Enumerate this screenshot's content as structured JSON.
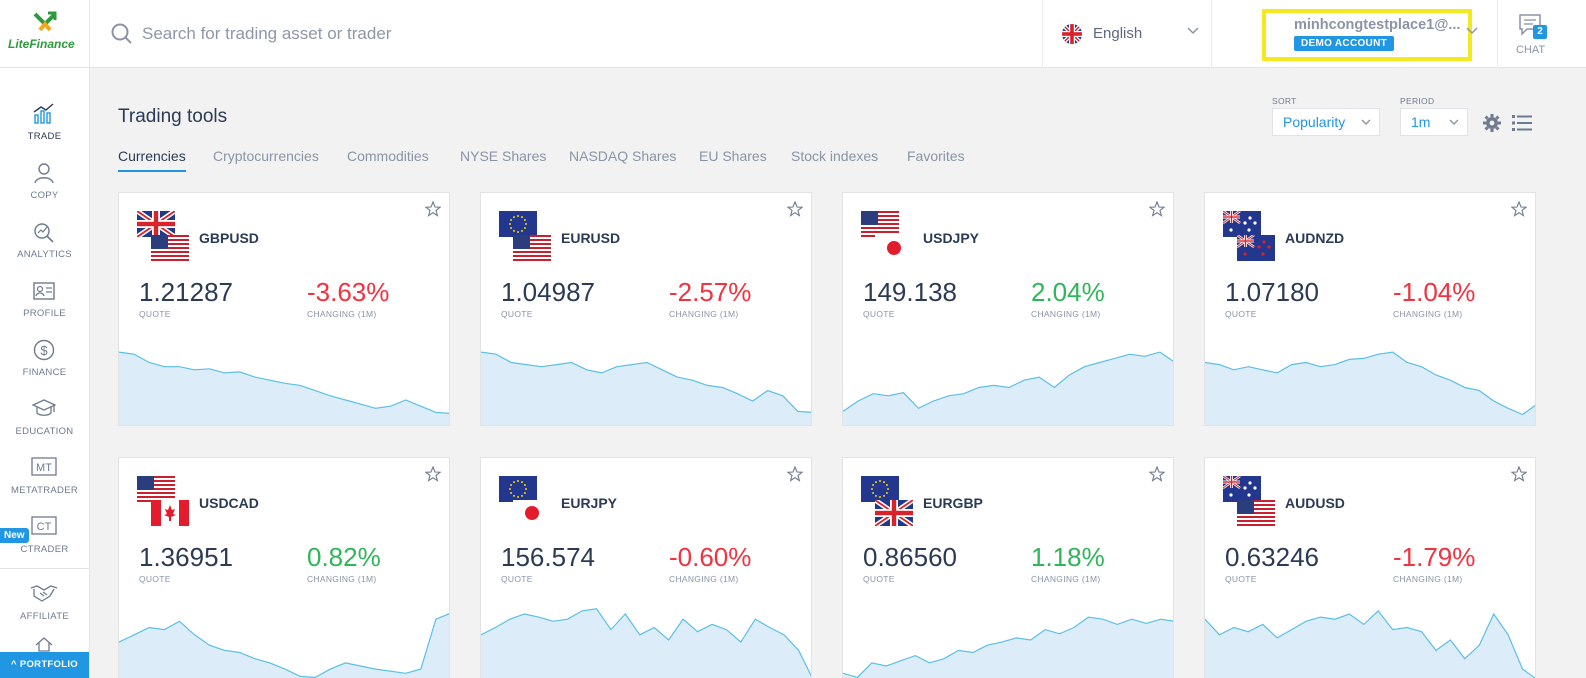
{
  "brand": {
    "logo_text": "LiteFinance",
    "accent": "#2196e3",
    "negative_color": "#f2323f",
    "positive_color": "#2fb65a"
  },
  "search": {
    "placeholder": "Search for trading asset or trader",
    "icon": "search-icon"
  },
  "language": {
    "label": "English",
    "icon": "uk-flag-icon"
  },
  "account": {
    "email": "minhcongtestplace1@...",
    "badge": "DEMO ACCOUNT"
  },
  "chat": {
    "label": "CHAT",
    "count": "2"
  },
  "sidebar": {
    "items": [
      {
        "label": "TRADE",
        "icon": "chart-icon"
      },
      {
        "label": "COPY",
        "icon": "user-icon"
      },
      {
        "label": "ANALYTICS",
        "icon": "analytics-icon"
      },
      {
        "label": "PROFILE",
        "icon": "id-card-icon"
      },
      {
        "label": "FINANCE",
        "icon": "dollar-icon"
      },
      {
        "label": "EDUCATION",
        "icon": "graduation-cap-icon"
      },
      {
        "label": "METATRADER",
        "icon": "mt-icon"
      },
      {
        "label": "CTRADER",
        "icon": "ct-icon"
      },
      {
        "label": "AFFILIATE",
        "icon": "handshake-icon"
      }
    ],
    "new_badge": "New",
    "portfolio_label": "PORTFOLIO"
  },
  "main": {
    "title": "Trading tools",
    "tabs": [
      "Currencies",
      "Cryptocurrencies",
      "Commodities",
      "NYSE Shares",
      "NASDAQ Shares",
      "EU Shares",
      "Stock indexes",
      "Favorites"
    ],
    "active_tab": 0,
    "sort": {
      "label": "SORT",
      "value": "Popularity"
    },
    "period": {
      "label": "PERIOD",
      "value": "1m"
    }
  },
  "cards": [
    {
      "symbol": "GBPUSD",
      "quote": "1.21287",
      "quote_label": "QUOTE",
      "change": "-3.63%",
      "change_label": "CHANGING (1M)",
      "trend": "neg",
      "flags": [
        "uk",
        "us"
      ],
      "spark": [
        0.72,
        0.7,
        0.62,
        0.58,
        0.58,
        0.55,
        0.56,
        0.52,
        0.53,
        0.48,
        0.45,
        0.42,
        0.4,
        0.35,
        0.3,
        0.26,
        0.22,
        0.18,
        0.2,
        0.26,
        0.2,
        0.14,
        0.13
      ]
    },
    {
      "symbol": "EURUSD",
      "quote": "1.04987",
      "quote_label": "QUOTE",
      "change": "-2.57%",
      "change_label": "CHANGING (1M)",
      "trend": "neg",
      "flags": [
        "eu",
        "us"
      ],
      "spark": [
        0.72,
        0.7,
        0.62,
        0.6,
        0.58,
        0.6,
        0.62,
        0.55,
        0.52,
        0.58,
        0.6,
        0.62,
        0.55,
        0.48,
        0.45,
        0.4,
        0.38,
        0.32,
        0.25,
        0.35,
        0.3,
        0.15,
        0.14
      ]
    },
    {
      "symbol": "USDJPY",
      "quote": "149.138",
      "quote_label": "QUOTE",
      "change": "2.04%",
      "change_label": "CHANGING (1M)",
      "trend": "pos",
      "flags": [
        "us",
        "jp"
      ],
      "spark": [
        0.15,
        0.25,
        0.32,
        0.3,
        0.33,
        0.18,
        0.25,
        0.3,
        0.32,
        0.38,
        0.4,
        0.38,
        0.45,
        0.48,
        0.38,
        0.5,
        0.58,
        0.62,
        0.66,
        0.7,
        0.68,
        0.72,
        0.62
      ]
    },
    {
      "symbol": "AUDNZD",
      "quote": "1.07180",
      "quote_label": "QUOTE",
      "change": "-1.04%",
      "change_label": "CHANGING (1M)",
      "trend": "neg",
      "flags": [
        "au",
        "nz"
      ],
      "spark": [
        0.62,
        0.6,
        0.55,
        0.58,
        0.55,
        0.52,
        0.6,
        0.62,
        0.58,
        0.6,
        0.65,
        0.66,
        0.7,
        0.72,
        0.62,
        0.58,
        0.5,
        0.45,
        0.38,
        0.35,
        0.25,
        0.18,
        0.12,
        0.22
      ]
    },
    {
      "symbol": "USDCAD",
      "quote": "1.36951",
      "quote_label": "QUOTE",
      "change": "0.82%",
      "change_label": "CHANGING (1M)",
      "trend": "pos",
      "flags": [
        "us",
        "ca"
      ],
      "spark": [
        0.48,
        0.55,
        0.62,
        0.6,
        0.68,
        0.55,
        0.45,
        0.4,
        0.38,
        0.32,
        0.28,
        0.22,
        0.15,
        0.14,
        0.22,
        0.28,
        0.25,
        0.22,
        0.2,
        0.18,
        0.22,
        0.7,
        0.76
      ]
    },
    {
      "symbol": "EURJPY",
      "quote": "156.574",
      "quote_label": "QUOTE",
      "change": "-0.60%",
      "change_label": "CHANGING (1M)",
      "trend": "neg",
      "flags": [
        "eu",
        "jp"
      ],
      "spark": [
        0.55,
        0.62,
        0.7,
        0.75,
        0.72,
        0.68,
        0.7,
        0.78,
        0.8,
        0.6,
        0.75,
        0.55,
        0.62,
        0.5,
        0.7,
        0.58,
        0.65,
        0.6,
        0.48,
        0.7,
        0.62,
        0.55,
        0.4,
        0.12
      ]
    },
    {
      "symbol": "EURGBP",
      "quote": "0.86560",
      "quote_label": "QUOTE",
      "change": "1.18%",
      "change_label": "CHANGING (1M)",
      "trend": "pos",
      "flags": [
        "eu",
        "uk"
      ],
      "spark": [
        0.18,
        0.14,
        0.28,
        0.25,
        0.3,
        0.35,
        0.28,
        0.32,
        0.4,
        0.38,
        0.45,
        0.48,
        0.52,
        0.5,
        0.6,
        0.56,
        0.62,
        0.72,
        0.7,
        0.65,
        0.7,
        0.66,
        0.7,
        0.68
      ]
    },
    {
      "symbol": "AUDUSD",
      "quote": "0.63246",
      "quote_label": "QUOTE",
      "change": "-1.79%",
      "change_label": "CHANGING (1M)",
      "trend": "neg",
      "flags": [
        "au",
        "us"
      ],
      "spark": [
        0.7,
        0.55,
        0.62,
        0.58,
        0.65,
        0.52,
        0.6,
        0.68,
        0.72,
        0.7,
        0.75,
        0.65,
        0.78,
        0.6,
        0.62,
        0.58,
        0.4,
        0.5,
        0.32,
        0.45,
        0.75,
        0.55,
        0.22,
        0.12
      ]
    }
  ]
}
